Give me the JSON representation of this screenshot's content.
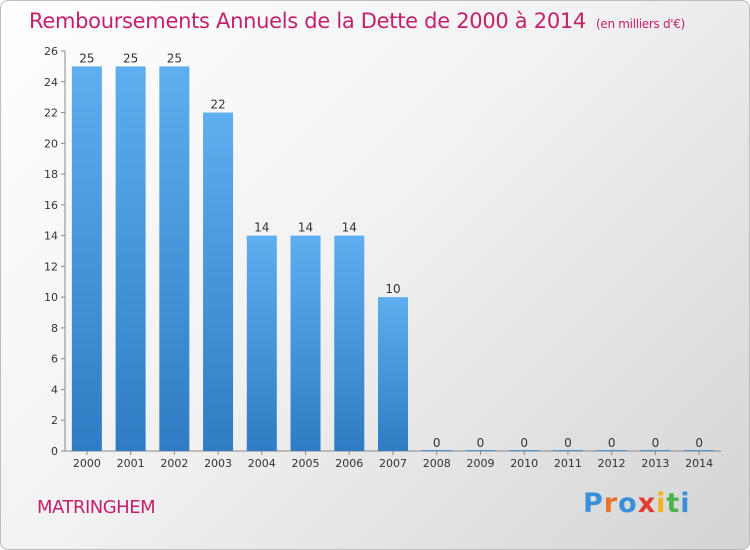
{
  "chart_data": {
    "type": "bar",
    "title": "Remboursements Annuels de la Dette de 2000 à 2014",
    "unit": "(en milliers d'€)",
    "categories": [
      "2000",
      "2001",
      "2002",
      "2003",
      "2004",
      "2005",
      "2006",
      "2007",
      "2008",
      "2009",
      "2010",
      "2011",
      "2012",
      "2013",
      "2014"
    ],
    "values": [
      25,
      25,
      25,
      22,
      14,
      14,
      14,
      10,
      0,
      0,
      0,
      0,
      0,
      0,
      0
    ],
    "ylim": [
      0,
      26
    ],
    "yticks": [
      0,
      2,
      4,
      6,
      8,
      10,
      12,
      14,
      16,
      18,
      20,
      22,
      24,
      26
    ],
    "grid": false,
    "bar_color": "#4a9be0",
    "title_color": "#c51f6b"
  },
  "footer": {
    "commune": "MATRINGHEM",
    "logo_letters": [
      {
        "ch": "P",
        "color": "#3a8fd9"
      },
      {
        "ch": "r",
        "color": "#e8732a"
      },
      {
        "ch": "o",
        "color": "#3a8fd9"
      },
      {
        "ch": "x",
        "color": "#e23a2f"
      },
      {
        "ch": "i",
        "color": "#f2b21b"
      },
      {
        "ch": "t",
        "color": "#4bb34b"
      },
      {
        "ch": "i",
        "color": "#3a8fd9"
      }
    ]
  }
}
